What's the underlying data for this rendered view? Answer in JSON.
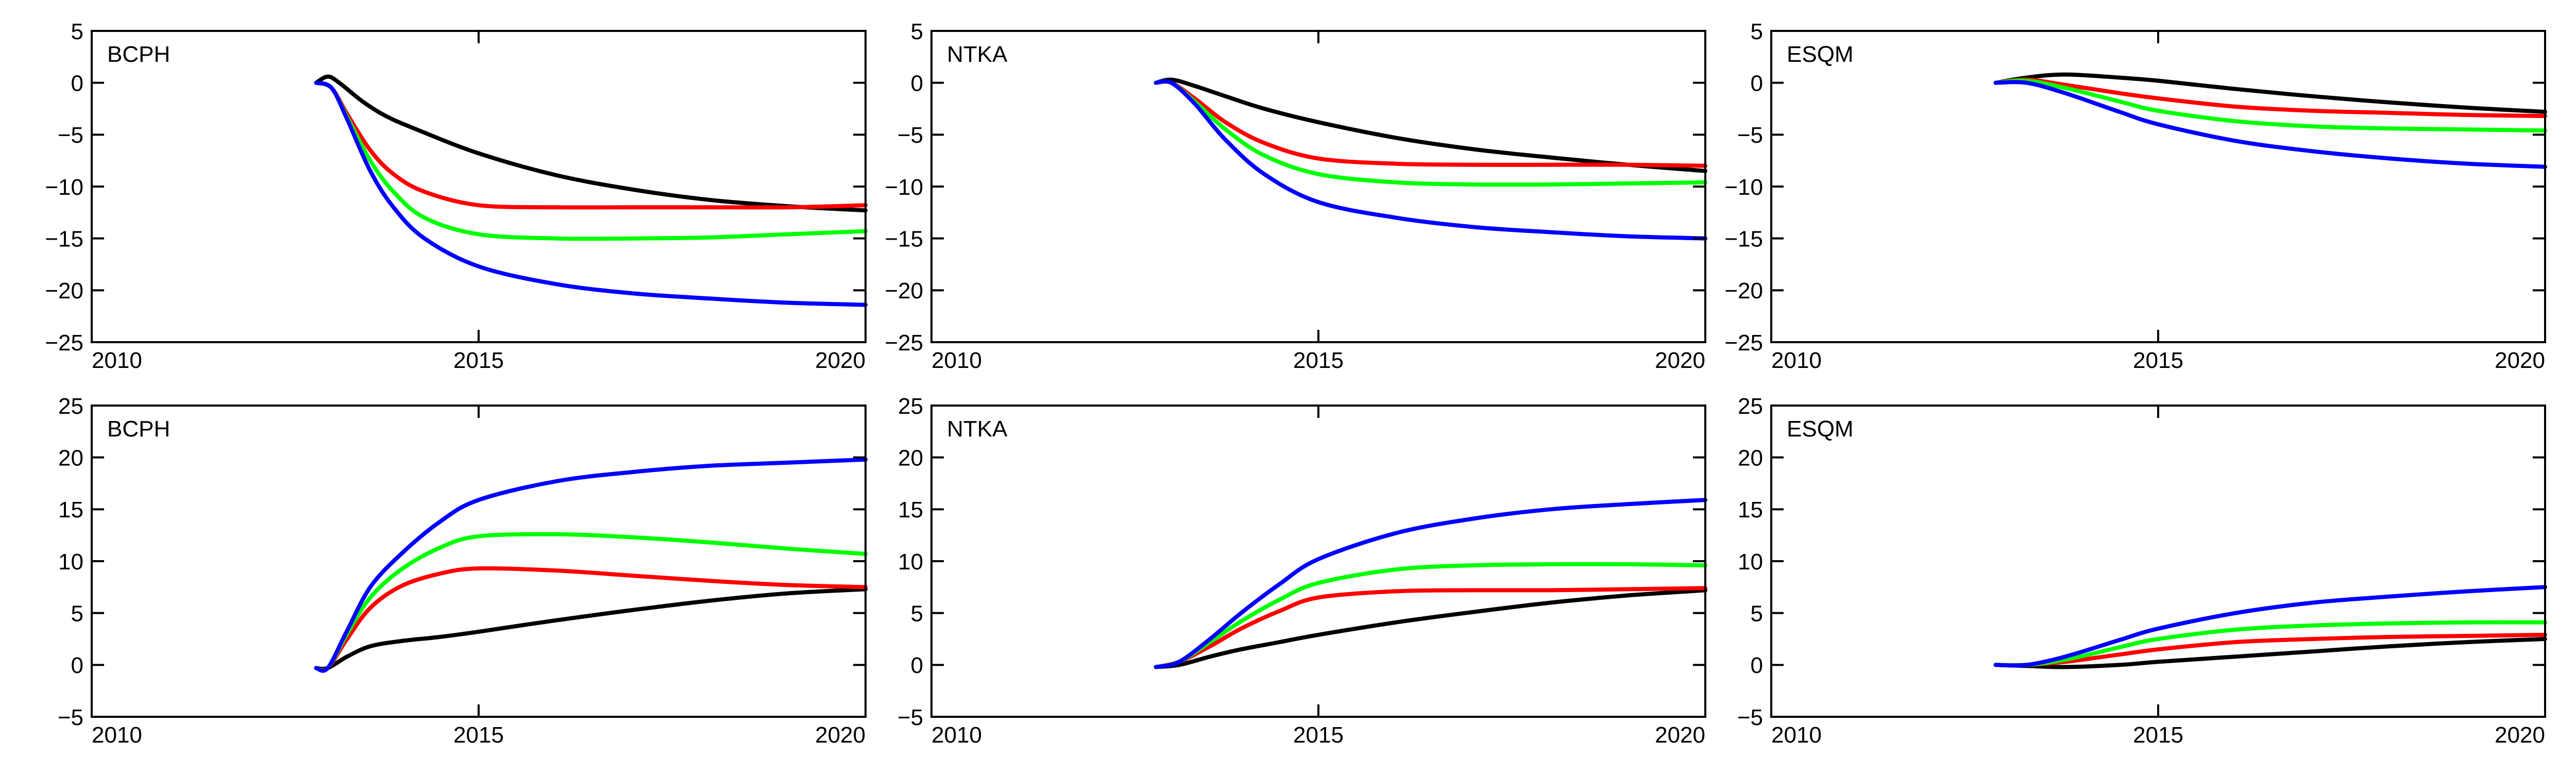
{
  "colors": {
    "black": "#000000",
    "red": "#ff0000",
    "green": "#00ff00",
    "blue": "#0000ff",
    "axis": "#000000"
  },
  "chart_data": [
    {
      "type": "line",
      "panel_label": "BCPH",
      "xlim": [
        2010,
        2020
      ],
      "ylim": [
        -25,
        5
      ],
      "xticks": [
        2010,
        2015,
        2020
      ],
      "xtick_labels": [
        "2010",
        "2015",
        "2020"
      ],
      "yticks": [
        -25,
        -20,
        -15,
        -10,
        -5,
        0,
        5
      ],
      "ytick_labels": [
        "−25",
        "−20",
        "−15",
        "−10",
        "−5",
        "0",
        "5"
      ],
      "grid": false,
      "series": [
        {
          "color": "black",
          "x": [
            2012.9,
            2013.05,
            2013.2,
            2013.5,
            2013.8,
            2014.2,
            2015,
            2016,
            2017,
            2018,
            2019,
            2020
          ],
          "y": [
            0,
            0.6,
            0,
            -1.8,
            -3.2,
            -4.5,
            -6.8,
            -8.9,
            -10.3,
            -11.3,
            -11.9,
            -12.3
          ]
        },
        {
          "color": "red",
          "x": [
            2012.9,
            2013.1,
            2013.3,
            2013.6,
            2013.9,
            2014.3,
            2015,
            2016,
            2017,
            2018,
            2019,
            2020
          ],
          "y": [
            0,
            -0.5,
            -3,
            -6.5,
            -8.8,
            -10.5,
            -11.8,
            -12,
            -12,
            -12,
            -12,
            -11.8
          ]
        },
        {
          "color": "green",
          "x": [
            2012.9,
            2013.1,
            2013.3,
            2013.6,
            2013.9,
            2014.3,
            2015,
            2016,
            2017,
            2018,
            2019,
            2020
          ],
          "y": [
            0,
            -0.5,
            -3.3,
            -7.5,
            -10.5,
            -13,
            -14.6,
            -15,
            -15,
            -14.9,
            -14.6,
            -14.3
          ]
        },
        {
          "color": "blue",
          "x": [
            2012.9,
            2013.1,
            2013.3,
            2013.6,
            2013.9,
            2014.3,
            2015,
            2016,
            2017,
            2018,
            2019,
            2020
          ],
          "y": [
            0,
            -0.5,
            -3.5,
            -8.5,
            -12,
            -15,
            -17.7,
            -19.4,
            -20.3,
            -20.8,
            -21.2,
            -21.4
          ]
        }
      ]
    },
    {
      "type": "line",
      "panel_label": "NTKA",
      "xlim": [
        2010,
        2020
      ],
      "ylim": [
        -25,
        5
      ],
      "xticks": [
        2010,
        2015,
        2020
      ],
      "xtick_labels": [
        "2010",
        "2015",
        "2020"
      ],
      "yticks": [
        -25,
        -20,
        -15,
        -10,
        -5,
        0,
        5
      ],
      "ytick_labels": [
        "−25",
        "−20",
        "−15",
        "−10",
        "−5",
        "0",
        "5"
      ],
      "grid": false,
      "series": [
        {
          "color": "black",
          "x": [
            2012.9,
            2013.1,
            2013.4,
            2013.8,
            2014.3,
            2015,
            2016,
            2017,
            2018,
            2019,
            2020
          ],
          "y": [
            0,
            0.3,
            -0.3,
            -1.3,
            -2.5,
            -3.8,
            -5.3,
            -6.4,
            -7.2,
            -7.9,
            -8.5
          ]
        },
        {
          "color": "red",
          "x": [
            2012.9,
            2013.1,
            2013.4,
            2013.8,
            2014.3,
            2015,
            2016,
            2017,
            2018,
            2019,
            2020
          ],
          "y": [
            0,
            0,
            -1.5,
            -3.8,
            -5.8,
            -7.3,
            -7.8,
            -7.9,
            -7.9,
            -7.9,
            -8
          ]
        },
        {
          "color": "green",
          "x": [
            2012.9,
            2013.1,
            2013.4,
            2013.8,
            2014.3,
            2015,
            2016,
            2017,
            2018,
            2019,
            2020
          ],
          "y": [
            0,
            0,
            -1.8,
            -4.5,
            -7,
            -8.8,
            -9.6,
            -9.8,
            -9.8,
            -9.7,
            -9.6
          ]
        },
        {
          "color": "blue",
          "x": [
            2012.9,
            2013.1,
            2013.4,
            2013.8,
            2014.3,
            2015,
            2016,
            2017,
            2018,
            2019,
            2020
          ],
          "y": [
            0,
            0,
            -2,
            -5.5,
            -8.8,
            -11.5,
            -13,
            -13.9,
            -14.4,
            -14.8,
            -15
          ]
        }
      ]
    },
    {
      "type": "line",
      "panel_label": "ESQM",
      "xlim": [
        2010,
        2020
      ],
      "ylim": [
        -25,
        5
      ],
      "xticks": [
        2010,
        2015,
        2020
      ],
      "xtick_labels": [
        "2010",
        "2015",
        "2020"
      ],
      "yticks": [
        -25,
        -20,
        -15,
        -10,
        -5,
        0,
        5
      ],
      "ytick_labels": [
        "−25",
        "−20",
        "−15",
        "−10",
        "−5",
        "0",
        "5"
      ],
      "grid": false,
      "series": [
        {
          "color": "black",
          "x": [
            2012.9,
            2013.3,
            2013.8,
            2014.5,
            2015,
            2016,
            2017,
            2018,
            2019,
            2020
          ],
          "y": [
            0,
            0.5,
            0.8,
            0.5,
            0.2,
            -0.6,
            -1.3,
            -1.9,
            -2.4,
            -2.8
          ]
        },
        {
          "color": "red",
          "x": [
            2012.9,
            2013.3,
            2013.8,
            2014.5,
            2015,
            2016,
            2017,
            2018,
            2019,
            2020
          ],
          "y": [
            0,
            0.3,
            -0.2,
            -1,
            -1.5,
            -2.3,
            -2.7,
            -2.9,
            -3.1,
            -3.2
          ]
        },
        {
          "color": "green",
          "x": [
            2012.9,
            2013.3,
            2013.8,
            2014.5,
            2015,
            2016,
            2017,
            2018,
            2019,
            2020
          ],
          "y": [
            0,
            0.2,
            -0.5,
            -1.8,
            -2.7,
            -3.7,
            -4.2,
            -4.4,
            -4.5,
            -4.6
          ]
        },
        {
          "color": "blue",
          "x": [
            2012.9,
            2013.3,
            2013.8,
            2014.5,
            2015,
            2016,
            2017,
            2018,
            2019,
            2020
          ],
          "y": [
            0,
            0,
            -1,
            -2.8,
            -4,
            -5.6,
            -6.6,
            -7.3,
            -7.8,
            -8.1
          ]
        }
      ]
    },
    {
      "type": "line",
      "panel_label": "BCPH",
      "xlim": [
        2010,
        2020
      ],
      "ylim": [
        -5,
        25
      ],
      "xticks": [
        2010,
        2015,
        2020
      ],
      "xtick_labels": [
        "2010",
        "2015",
        "2020"
      ],
      "yticks": [
        -5,
        0,
        5,
        10,
        15,
        20,
        25
      ],
      "ytick_labels": [
        "−5",
        "0",
        "5",
        "10",
        "15",
        "20",
        "25"
      ],
      "grid": false,
      "series": [
        {
          "color": "black",
          "x": [
            2012.9,
            2013.05,
            2013.3,
            2013.6,
            2014,
            2014.5,
            2015,
            2016,
            2017,
            2018,
            2019,
            2020
          ],
          "y": [
            -0.3,
            -0.3,
            0.8,
            1.8,
            2.3,
            2.7,
            3.2,
            4.3,
            5.3,
            6.2,
            6.9,
            7.3
          ]
        },
        {
          "color": "red",
          "x": [
            2012.9,
            2013.05,
            2013.3,
            2013.6,
            2014,
            2014.5,
            2015,
            2016,
            2017,
            2018,
            2019,
            2020
          ],
          "y": [
            -0.3,
            -0.3,
            2.5,
            5.5,
            7.6,
            8.8,
            9.3,
            9.1,
            8.6,
            8.1,
            7.7,
            7.5
          ]
        },
        {
          "color": "green",
          "x": [
            2012.9,
            2013.05,
            2013.3,
            2013.6,
            2014,
            2014.5,
            2015,
            2016,
            2017,
            2018,
            2019,
            2020
          ],
          "y": [
            -0.3,
            -0.3,
            3,
            6.5,
            9.2,
            11.3,
            12.4,
            12.6,
            12.3,
            11.8,
            11.2,
            10.7
          ]
        },
        {
          "color": "blue",
          "x": [
            2012.9,
            2013.05,
            2013.3,
            2013.6,
            2014,
            2014.5,
            2015,
            2016,
            2017,
            2018,
            2019,
            2020
          ],
          "y": [
            -0.3,
            -0.3,
            3.3,
            7.5,
            10.7,
            13.8,
            15.9,
            17.7,
            18.6,
            19.2,
            19.5,
            19.8
          ]
        }
      ]
    },
    {
      "type": "line",
      "panel_label": "NTKA",
      "xlim": [
        2010,
        2020
      ],
      "ylim": [
        -5,
        25
      ],
      "xticks": [
        2010,
        2015,
        2020
      ],
      "xtick_labels": [
        "2010",
        "2015",
        "2020"
      ],
      "yticks": [
        -5,
        0,
        5,
        10,
        15,
        20,
        25
      ],
      "ytick_labels": [
        "−5",
        "0",
        "5",
        "10",
        "15",
        "20",
        "25"
      ],
      "grid": false,
      "series": [
        {
          "color": "black",
          "x": [
            2012.9,
            2013.2,
            2013.6,
            2014,
            2014.5,
            2015,
            2016,
            2017,
            2018,
            2019,
            2020
          ],
          "y": [
            -0.2,
            0,
            0.8,
            1.5,
            2.2,
            2.9,
            4.1,
            5.1,
            6,
            6.7,
            7.2
          ]
        },
        {
          "color": "red",
          "x": [
            2012.9,
            2013.2,
            2013.6,
            2014,
            2014.5,
            2015,
            2016,
            2017,
            2018,
            2019,
            2020
          ],
          "y": [
            -0.2,
            0.3,
            1.8,
            3.5,
            5.2,
            6.5,
            7.1,
            7.2,
            7.2,
            7.3,
            7.4
          ]
        },
        {
          "color": "green",
          "x": [
            2012.9,
            2013.2,
            2013.6,
            2014,
            2014.5,
            2015,
            2016,
            2017,
            2018,
            2019,
            2020
          ],
          "y": [
            -0.2,
            0.3,
            2.2,
            4.2,
            6.3,
            7.9,
            9.2,
            9.6,
            9.7,
            9.7,
            9.6
          ]
        },
        {
          "color": "blue",
          "x": [
            2012.9,
            2013.2,
            2013.6,
            2014,
            2014.5,
            2015,
            2016,
            2017,
            2018,
            2019,
            2020
          ],
          "y": [
            -0.2,
            0.3,
            2.5,
            5,
            7.8,
            10.2,
            12.7,
            14.1,
            15,
            15.5,
            15.9
          ]
        }
      ]
    },
    {
      "type": "line",
      "panel_label": "ESQM",
      "xlim": [
        2010,
        2020
      ],
      "ylim": [
        -5,
        25
      ],
      "xticks": [
        2010,
        2015,
        2020
      ],
      "xtick_labels": [
        "2010",
        "2015",
        "2020"
      ],
      "yticks": [
        -5,
        0,
        5,
        10,
        15,
        20,
        25
      ],
      "ytick_labels": [
        "−5",
        "0",
        "5",
        "10",
        "15",
        "20",
        "25"
      ],
      "grid": false,
      "series": [
        {
          "color": "black",
          "x": [
            2012.9,
            2013.3,
            2013.8,
            2014.5,
            2015,
            2016,
            2017,
            2018,
            2019,
            2020
          ],
          "y": [
            0,
            -0.1,
            -0.2,
            0,
            0.3,
            0.8,
            1.3,
            1.8,
            2.2,
            2.5
          ]
        },
        {
          "color": "red",
          "x": [
            2012.9,
            2013.3,
            2013.8,
            2014.5,
            2015,
            2016,
            2017,
            2018,
            2019,
            2020
          ],
          "y": [
            0,
            0,
            0.3,
            1,
            1.5,
            2.2,
            2.5,
            2.7,
            2.8,
            2.9
          ]
        },
        {
          "color": "green",
          "x": [
            2012.9,
            2013.3,
            2013.8,
            2014.5,
            2015,
            2016,
            2017,
            2018,
            2019,
            2020
          ],
          "y": [
            0,
            0,
            0.5,
            1.7,
            2.5,
            3.4,
            3.8,
            4,
            4.1,
            4.1
          ]
        },
        {
          "color": "blue",
          "x": [
            2012.9,
            2013.3,
            2013.8,
            2014.5,
            2015,
            2016,
            2017,
            2018,
            2019,
            2020
          ],
          "y": [
            0,
            0,
            0.8,
            2.4,
            3.5,
            5,
            6,
            6.6,
            7.1,
            7.5
          ]
        }
      ]
    }
  ]
}
